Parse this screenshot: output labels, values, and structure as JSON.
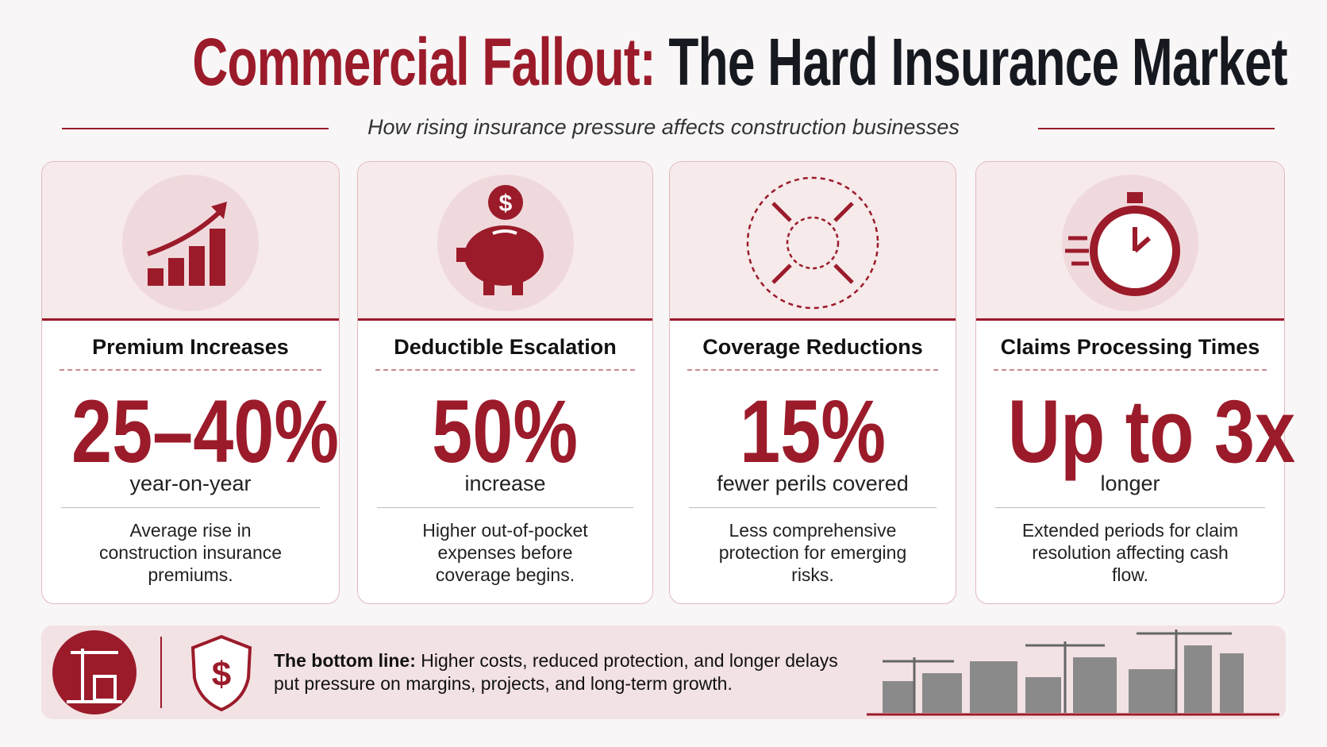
{
  "header": {
    "title_part1": "Commercial Fallout:",
    "title_part2": "The Hard Insurance Market",
    "subtitle": "How rising insurance pressure affects construction businesses"
  },
  "cards": [
    {
      "title": "Premium Increases",
      "stat": "25–40%",
      "stat_caption": "year-on-year",
      "description": "Average rise in construction insurance premiums."
    },
    {
      "title": "Deductible Escalation",
      "stat": "50%",
      "stat_caption": "increase",
      "description": "Higher out-of-pocket expenses before coverage begins."
    },
    {
      "title": "Coverage Reductions",
      "stat": "15%",
      "stat_caption": "fewer perils covered",
      "description": "Less comprehensive protection for emerging risks."
    },
    {
      "title": "Claims Processing Times",
      "stat": "Up to 3x",
      "stat_caption": "longer",
      "description": "Extended periods for claim resolution affecting cash flow."
    }
  ],
  "footer": {
    "lead": "The bottom line:",
    "text": "Higher costs, reduced protection, and longer delays put pressure on margins, projects, and long-term growth."
  }
}
